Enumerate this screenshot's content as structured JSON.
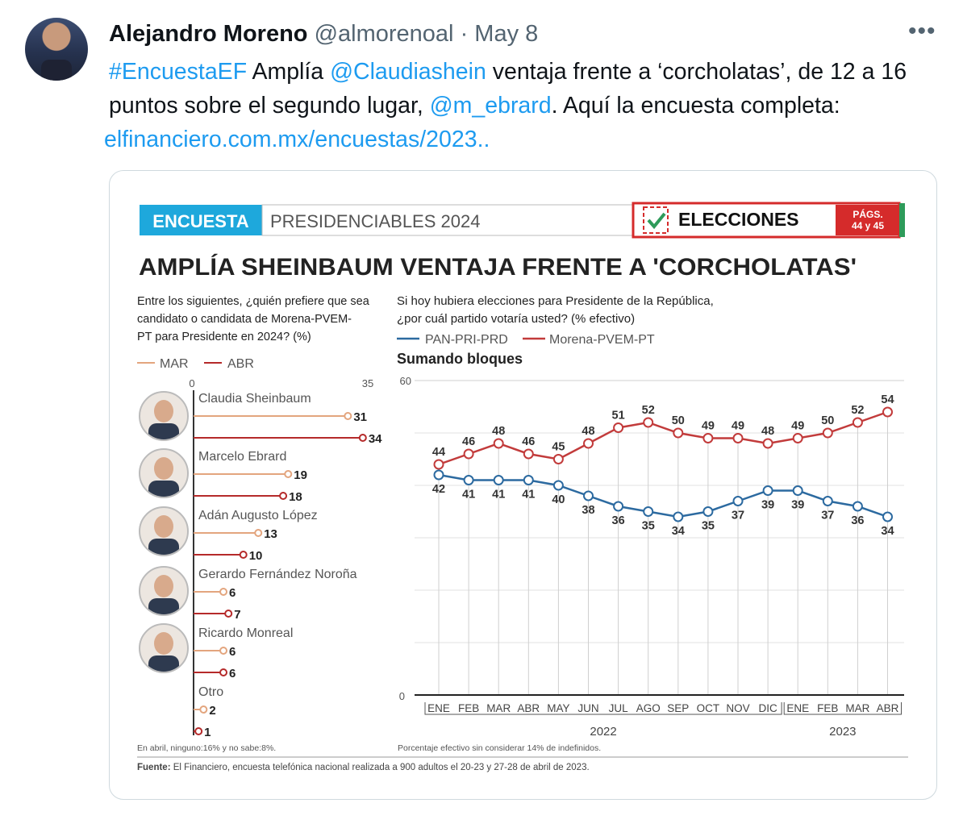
{
  "tweet": {
    "author_name": "Alejandro Moreno",
    "handle": "@almorenoal",
    "separator": "·",
    "date": "May 8",
    "more_icon": "more-horizontal-icon",
    "text": {
      "hashtag": "#EncuestaEF",
      "part1": " Amplía ",
      "mention1": "@Claudiashein",
      "part2": " ventaja frente a ‘corcholatas’, de 12 a 16 puntos sobre el segundo lugar, ",
      "mention2": "@m_ebrard",
      "part3": ". Aquí la encuesta completa:",
      "link": "elfinanciero.com.mx/encuestas/2023.."
    },
    "colors": {
      "link": "#1d9bf0",
      "muted": "#536471"
    }
  },
  "graphic": {
    "tag": "ENCUESTA",
    "section": "PRESIDENCIABLES 2024",
    "elecciones": "ELECCIONES",
    "pags_line1": "PÁGS.",
    "pags_line2": "44 y 45",
    "headline": "AMPLÍA SHEINBAUM VENTAJA FRENTE A 'CORCHOLATAS'",
    "left_question": [
      "Entre los siguientes, ¿quién prefiere que sea",
      "candidato o candidata de Morena-PVEM-",
      "PT para Presidente en 2024? (%)"
    ],
    "right_question": [
      "Si hoy hubiera elecciones para Presidente de la República,",
      "¿por cuál partido votaría usted? (% efectivo)"
    ],
    "subtitle": "Sumando bloques",
    "left_note": "En abril, ninguno:16% y no sabe:8%.",
    "right_note": "Porcentaje efectivo sin considerar 14% de indefinidos.",
    "source_label": "Fuente:",
    "source_text": " El Financiero, encuesta telefónica nacional realizada a 900 adultos el 20-23 y 27-28 de abril de 2023.",
    "colors": {
      "mar": "#e3a57e",
      "abr": "#b52a2a",
      "blue": "#2c6aa0",
      "red": "#c23b3b",
      "cyan": "#1ea8dc",
      "red_banner": "#d52b2b",
      "green": "#2e9b5a"
    }
  },
  "chart_data": [
    {
      "type": "bar",
      "orientation": "horizontal",
      "xlim": [
        0,
        35
      ],
      "tick_labels": [
        "0",
        "35"
      ],
      "legend": [
        "MAR",
        "ABR"
      ],
      "categories": [
        "Claudia Sheinbaum",
        "Marcelo Ebrard",
        "Adán Augusto López",
        "Gerardo Fernández Noroña",
        "Ricardo Monreal",
        "Otro"
      ],
      "series": [
        {
          "name": "MAR",
          "values": [
            31,
            19,
            13,
            6,
            6,
            2
          ]
        },
        {
          "name": "ABR",
          "values": [
            34,
            18,
            10,
            7,
            6,
            1
          ]
        }
      ]
    },
    {
      "type": "line",
      "title": "Sumando bloques",
      "ylim": [
        0,
        60
      ],
      "y_tick_labels": [
        "0",
        "60"
      ],
      "categories": [
        "ENE",
        "FEB",
        "MAR",
        "ABR",
        "MAY",
        "JUN",
        "JUL",
        "AGO",
        "SEP",
        "OCT",
        "NOV",
        "DIC",
        "ENE",
        "FEB",
        "MAR",
        "ABR"
      ],
      "year_groups": [
        {
          "label": "2022",
          "count": 12
        },
        {
          "label": "2023",
          "count": 4
        }
      ],
      "series": [
        {
          "name": "PAN-PRI-PRD",
          "values": [
            42,
            41,
            41,
            41,
            40,
            38,
            36,
            35,
            34,
            35,
            37,
            39,
            39,
            37,
            36,
            34
          ]
        },
        {
          "name": "Morena-PVEM-PT",
          "values": [
            44,
            46,
            48,
            46,
            45,
            48,
            51,
            52,
            50,
            49,
            49,
            48,
            49,
            50,
            52,
            54
          ]
        }
      ]
    }
  ]
}
